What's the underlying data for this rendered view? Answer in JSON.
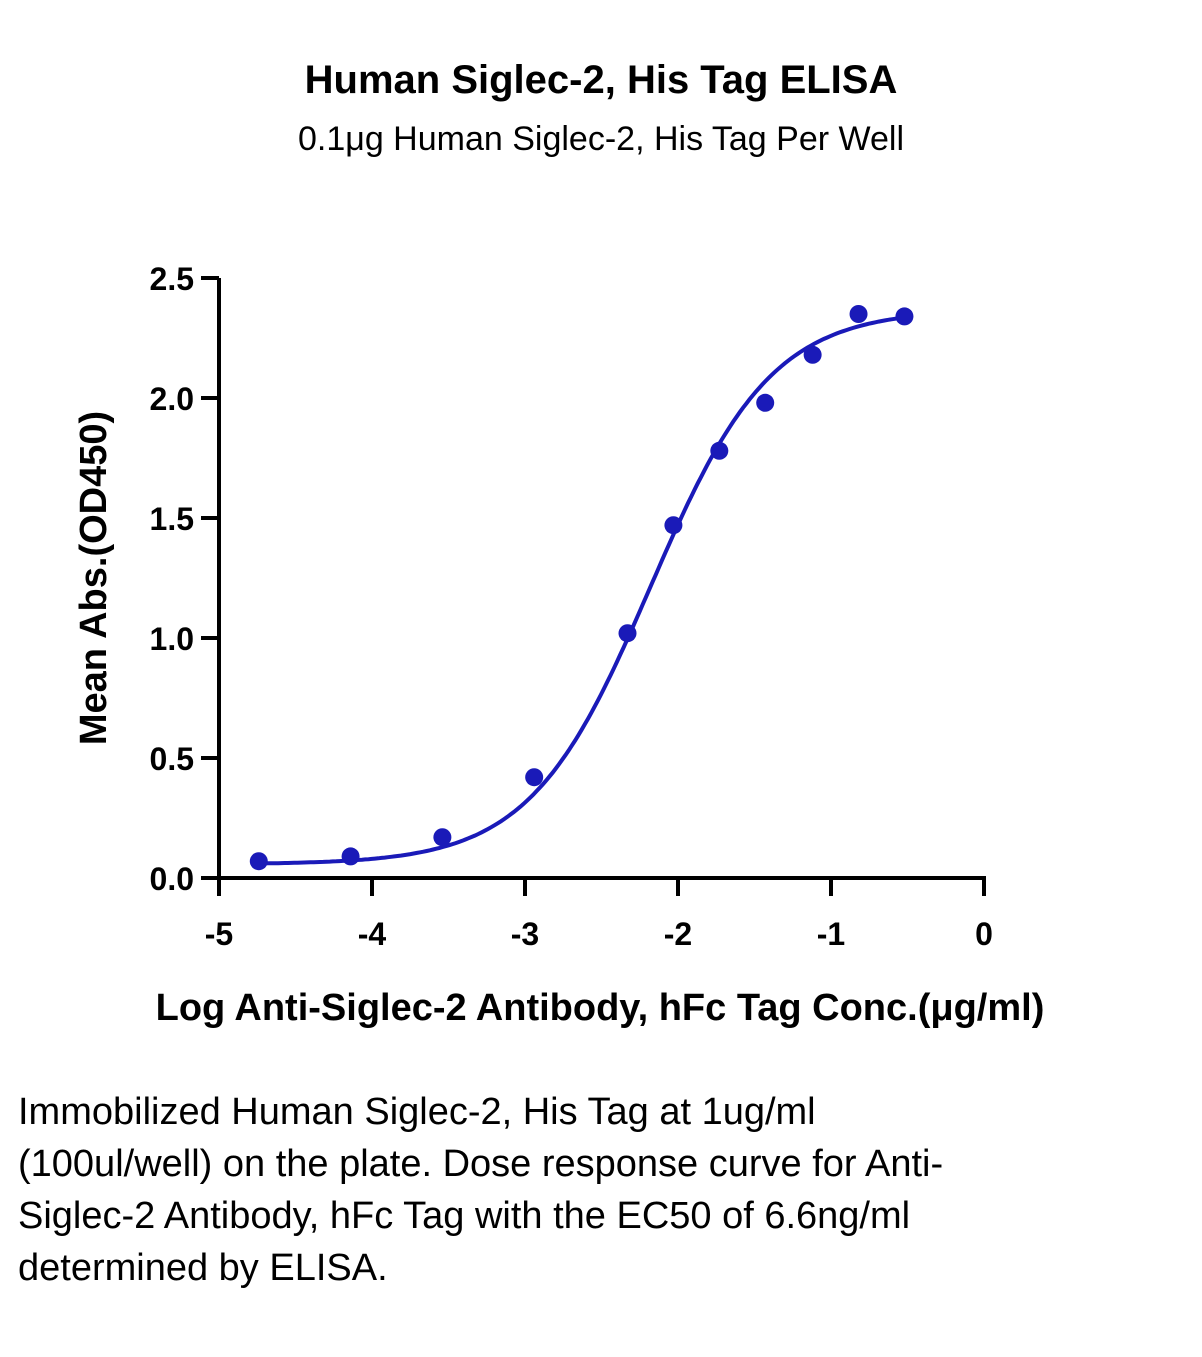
{
  "chart_data": {
    "type": "scatter",
    "title": "Human Siglec-2, His Tag ELISA",
    "subtitle": "0.1μg Human Siglec-2, His Tag Per Well",
    "xlabel": "Log Anti-Siglec-2 Antibody, hFc Tag Conc.(μg/ml)",
    "ylabel": "Mean Abs.(OD450)",
    "xlim": [
      -5,
      0
    ],
    "ylim": [
      0,
      2.5
    ],
    "xticks": [
      -5,
      -4,
      -3,
      -2,
      -1,
      0
    ],
    "yticks": [
      0,
      0.5,
      1,
      1.5,
      2,
      2.5
    ],
    "xtick_labels": [
      "-5",
      "-4",
      "-3",
      "-2",
      "-1",
      "0"
    ],
    "ytick_labels": [
      "0.0",
      "0.5",
      "1.0",
      "1.5",
      "2.0",
      "2.5"
    ],
    "grid": false,
    "legend": false,
    "color": "#1a1ab8",
    "series": [
      {
        "x": [
          -4.74,
          -4.14,
          -3.54,
          -2.94,
          -2.33,
          -2.03,
          -1.73,
          -1.43,
          -1.12,
          -0.82,
          -0.52
        ],
        "y": [
          0.07,
          0.09,
          0.17,
          0.42,
          1.02,
          1.47,
          1.78,
          1.98,
          2.18,
          2.35,
          2.34
        ],
        "fit": "4PL"
      }
    ]
  },
  "caption": "Immobilized Human Siglec-2, His Tag at 1ug/ml (100ul/well) on the plate. Dose response curve for Anti-Siglec-2 Antibody, hFc Tag with the EC50 of 6.6ng/ml determined by ELISA."
}
